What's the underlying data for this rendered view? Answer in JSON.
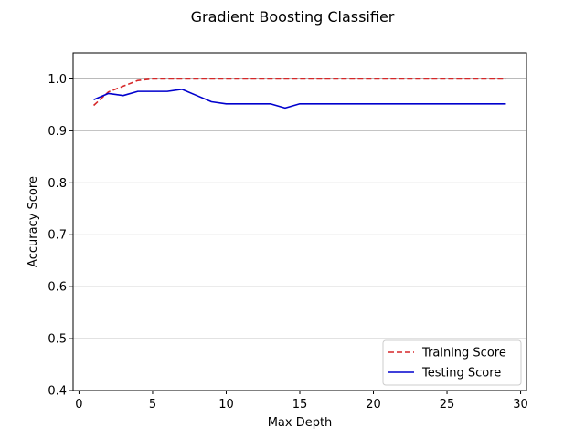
{
  "chart_data": {
    "type": "line",
    "title": "Gradient Boosting Classifier",
    "xlabel": "Max Depth",
    "ylabel": "Accuracy Score",
    "xlim": [
      -0.4,
      30.4
    ],
    "ylim": [
      0.4,
      1.05
    ],
    "xticks": [
      0,
      5,
      10,
      15,
      20,
      25,
      30
    ],
    "yticks": [
      0.4,
      0.5,
      0.6,
      0.7,
      0.8,
      0.9,
      1.0
    ],
    "xtick_labels": [
      "0",
      "5",
      "10",
      "15",
      "20",
      "25",
      "30"
    ],
    "ytick_labels": [
      "0.4",
      "0.5",
      "0.6",
      "0.7",
      "0.8",
      "0.9",
      "1.0"
    ],
    "grid": "y-major",
    "legend_position": "lower-right",
    "x": [
      1,
      2,
      3,
      4,
      5,
      6,
      7,
      8,
      9,
      10,
      11,
      12,
      13,
      14,
      15,
      16,
      17,
      18,
      19,
      20,
      21,
      22,
      23,
      24,
      25,
      26,
      27,
      28,
      29
    ],
    "series": [
      {
        "name": "Training Score",
        "color": "#d62728",
        "style": "dashed",
        "values": [
          0.949,
          0.975,
          0.986,
          0.997,
          1.0,
          1.0,
          1.0,
          1.0,
          1.0,
          1.0,
          1.0,
          1.0,
          1.0,
          1.0,
          1.0,
          1.0,
          1.0,
          1.0,
          1.0,
          1.0,
          1.0,
          1.0,
          1.0,
          1.0,
          1.0,
          1.0,
          1.0,
          1.0,
          1.0
        ]
      },
      {
        "name": "Testing Score",
        "color": "#0000cd",
        "style": "solid",
        "values": [
          0.96,
          0.972,
          0.968,
          0.976,
          0.976,
          0.976,
          0.98,
          0.968,
          0.956,
          0.952,
          0.952,
          0.952,
          0.952,
          0.944,
          0.952,
          0.952,
          0.952,
          0.952,
          0.952,
          0.952,
          0.952,
          0.952,
          0.952,
          0.952,
          0.952,
          0.952,
          0.952,
          0.952,
          0.952
        ]
      }
    ]
  }
}
